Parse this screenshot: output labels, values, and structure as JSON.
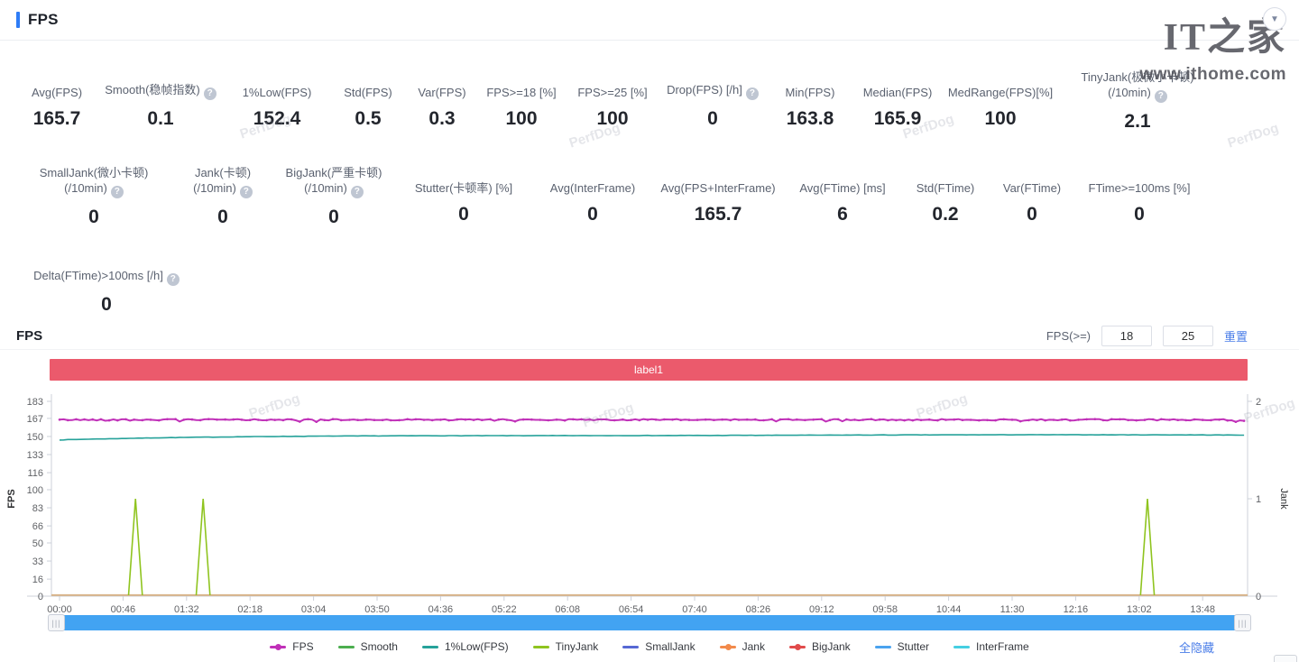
{
  "header": {
    "title": "FPS",
    "collapse_icon": "▼"
  },
  "watermarks": {
    "perfdog": "PerfDog",
    "ithome_logo": "IT之家",
    "ithome_url": "www.ithome.com"
  },
  "stats": {
    "row1": [
      {
        "label": "Avg(FPS)",
        "help": false,
        "value": "165.7"
      },
      {
        "label": "Smooth(稳帧指数)",
        "help": true,
        "value": "0.1"
      },
      {
        "label": "1%Low(FPS)",
        "help": false,
        "value": "152.4"
      },
      {
        "label": "Std(FPS)",
        "help": false,
        "value": "0.5"
      },
      {
        "label": "Var(FPS)",
        "help": false,
        "value": "0.3"
      },
      {
        "label": "FPS>=18 [%]",
        "help": false,
        "value": "100"
      },
      {
        "label": "FPS>=25 [%]",
        "help": false,
        "value": "100"
      },
      {
        "label": "Drop(FPS) [/h]",
        "help": true,
        "value": "0"
      },
      {
        "label": "Min(FPS)",
        "help": false,
        "value": "163.8"
      },
      {
        "label": "Median(FPS)",
        "help": false,
        "value": "165.9"
      },
      {
        "label": "MedRange(FPS)[%]",
        "help": false,
        "value": "100"
      },
      {
        "label": "TinyJank(极微小卡顿)",
        "label2": "(/10min)",
        "help": true,
        "value": "2.1"
      }
    ],
    "row2": [
      {
        "label": "SmallJank(微小卡顿)",
        "label2": "(/10min)",
        "help": true,
        "value": "0"
      },
      {
        "label": "Jank(卡顿)",
        "label2": "(/10min)",
        "help": true,
        "value": "0"
      },
      {
        "label": "BigJank(严重卡顿)",
        "label2": "(/10min)",
        "help": true,
        "value": "0"
      },
      {
        "label": "Stutter(卡顿率) [%]",
        "help": false,
        "value": "0"
      },
      {
        "label": "Avg(InterFrame)",
        "help": false,
        "value": "0"
      },
      {
        "label": "Avg(FPS+InterFrame)",
        "help": false,
        "value": "165.7"
      },
      {
        "label": "Avg(FTime) [ms]",
        "help": false,
        "value": "6"
      },
      {
        "label": "Std(FTime)",
        "help": false,
        "value": "0.2"
      },
      {
        "label": "Var(FTime)",
        "help": false,
        "value": "0"
      },
      {
        "label": "FTime>=100ms [%]",
        "help": false,
        "value": "0"
      }
    ],
    "row3": [
      {
        "label": "Delta(FTime)>100ms [/h]",
        "help": true,
        "value": "0"
      }
    ]
  },
  "chart_section": {
    "title": "FPS",
    "threshold_label": "FPS(>=)",
    "threshold1": "18",
    "threshold2": "25",
    "reset_label": "重置",
    "hide_all_label": "全隐藏"
  },
  "chart_data": {
    "type": "line",
    "band": {
      "text": "label1",
      "color": "#eb5a6c"
    },
    "x_ticks": [
      "00:00",
      "00:46",
      "01:32",
      "02:18",
      "03:04",
      "03:50",
      "04:36",
      "05:22",
      "06:08",
      "06:54",
      "07:40",
      "08:26",
      "09:12",
      "09:58",
      "10:44",
      "11:30",
      "12:16",
      "13:02",
      "13:48"
    ],
    "x_tick_interval_s": 46,
    "duration_s": 859,
    "y_left": {
      "label": "FPS",
      "ticks": [
        183,
        167,
        150,
        133,
        116,
        100,
        83,
        66,
        50,
        33,
        16,
        0
      ],
      "max": 183,
      "min": 0
    },
    "y_right": {
      "label": "Jank",
      "ticks": [
        2,
        1,
        0
      ],
      "max": 2,
      "min": 0
    },
    "series": [
      {
        "name": "FPS",
        "axis": "left",
        "color": "#c030b8",
        "style": "line+dots",
        "approx": {
          "baseline": 165.7,
          "noise": 1.3,
          "min": 163.8,
          "max": 167.0
        }
      },
      {
        "name": "1%Low(FPS)",
        "axis": "left",
        "color": "#26a29a",
        "style": "line",
        "approx": {
          "start": 146.8,
          "plateau": 151.4,
          "ramp_tau_s": 150,
          "noise": 0.3
        }
      },
      {
        "name": "TinyJank",
        "axis": "right",
        "color": "#8fc41f",
        "style": "spikes",
        "baseline": 0,
        "spikes": [
          {
            "t_s": 55,
            "time": "00:55",
            "value": 1
          },
          {
            "t_s": 104,
            "time": "01:44",
            "value": 1
          },
          {
            "t_s": 788,
            "time": "13:08",
            "value": 1
          }
        ]
      },
      {
        "name": "zero-baseline (Smooth, SmallJank, Jank, BigJank, Stutter, InterFrame all = 0)",
        "axis": "left",
        "color": "#d8b184",
        "style": "line",
        "value": 0
      }
    ]
  },
  "legend": {
    "items": [
      {
        "label": "FPS",
        "color": "#c030b8",
        "dot": true
      },
      {
        "label": "Smooth",
        "color": "#4cae4f",
        "dot": false
      },
      {
        "label": "1%Low(FPS)",
        "color": "#26a29a",
        "dot": false
      },
      {
        "label": "TinyJank",
        "color": "#8fc41f",
        "dot": false
      },
      {
        "label": "SmallJank",
        "color": "#5668d4",
        "dot": false
      },
      {
        "label": "Jank",
        "color": "#f28a4b",
        "dot": true
      },
      {
        "label": "BigJank",
        "color": "#e14b4b",
        "dot": true
      },
      {
        "label": "Stutter",
        "color": "#4aa3ef",
        "dot": false
      },
      {
        "label": "InterFrame",
        "color": "#45cfe2",
        "dot": false
      }
    ]
  }
}
